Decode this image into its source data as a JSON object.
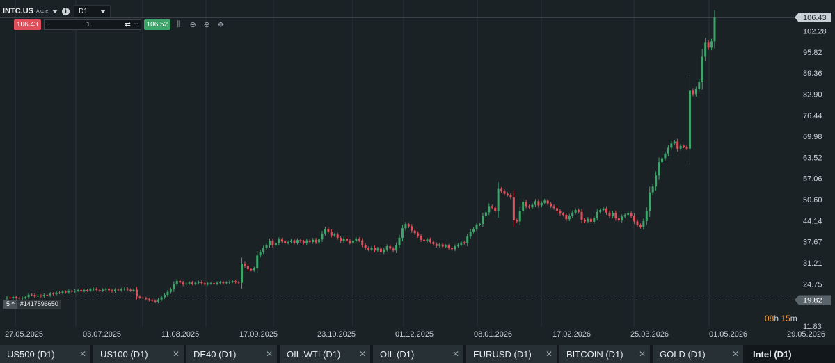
{
  "header": {
    "symbol": "INTC.US",
    "symbol_type": "Akcie",
    "timeframe": "D1",
    "info_icon": "info-icon"
  },
  "order": {
    "sell_price": "106.43",
    "buy_price": "106.52",
    "quantity": "1",
    "minus_label": "−",
    "plus_label": "+",
    "toggle_icon": "swap-icon",
    "tools": [
      "indicators-icon",
      "zoom-out-icon",
      "zoom-in-icon",
      "crosshair-move-icon"
    ]
  },
  "price_axis": {
    "labels": [
      "102.28",
      "95.82",
      "89.36",
      "82.90",
      "76.44",
      "69.98",
      "63.52",
      "57.06",
      "50.60",
      "44.14",
      "37.67",
      "31.21",
      "24.75",
      "11.83"
    ],
    "current_price": "106.43",
    "line_price": "19.82"
  },
  "time_axis": {
    "labels": [
      "27.05.2025",
      "03.07.2025",
      "11.08.2025",
      "17.09.2025",
      "23.10.2025",
      "01.12.2025",
      "08.01.2026",
      "17.02.2026",
      "25.03.2026",
      "01.05.2026",
      "29.05.2026"
    ]
  },
  "countdown": {
    "hours": "08",
    "hours_unit": "h",
    "minutes": "15",
    "minutes_unit": "m"
  },
  "order_line": {
    "count": "5",
    "chevron": "^",
    "id": "#1417596650"
  },
  "colors": {
    "up": "#3fa46a",
    "down": "#e0505a",
    "background": "#1b2226",
    "grid": "#2a3338"
  },
  "chart_data": {
    "type": "candlestick",
    "ylim": [
      11.83,
      106.43
    ],
    "close": [
      20.6,
      20.4,
      20.8,
      20.5,
      20.3,
      20.5,
      20.7,
      21.5,
      21.4,
      20.9,
      21.2,
      21.0,
      21.4,
      21.3,
      21.8,
      21.6,
      22.1,
      22.0,
      22.4,
      22.2,
      22.6,
      22.4,
      22.7,
      22.9,
      22.6,
      22.9,
      22.7,
      23.1,
      23.3,
      22.9,
      22.7,
      23.0,
      23.2,
      22.8,
      22.5,
      23.0,
      22.8,
      23.1,
      23.3,
      23.0,
      22.7,
      23.0,
      20.9,
      20.6,
      20.4,
      20.1,
      19.8,
      19.6,
      19.3,
      20.0,
      20.7,
      21.4,
      22.3,
      23.1,
      24.8,
      25.7,
      25.2,
      24.6,
      24.9,
      25.2,
      24.8,
      25.1,
      25.4,
      25.0,
      24.7,
      24.9,
      25.0,
      24.8,
      25.1,
      25.3,
      25.0,
      25.2,
      25.4,
      25.6,
      25.3,
      25.1,
      31.0,
      30.2,
      29.3,
      29.0,
      29.6,
      33.5,
      34.6,
      35.8,
      36.6,
      38.0,
      36.6,
      37.3,
      38.4,
      37.8,
      37.3,
      37.6,
      38.1,
      37.4,
      38.2,
      37.8,
      37.3,
      38.1,
      37.6,
      38.3,
      37.5,
      38.4,
      40.2,
      41.6,
      40.8,
      39.6,
      39.9,
      38.9,
      37.9,
      38.6,
      38.0,
      37.4,
      38.0,
      38.6,
      38.1,
      36.7,
      35.8,
      35.3,
      35.9,
      35.0,
      35.6,
      34.5,
      35.3,
      36.3,
      35.6,
      35.0,
      36.7,
      38.9,
      41.8,
      43.1,
      42.4,
      41.1,
      40.3,
      39.5,
      38.3,
      37.9,
      38.4,
      37.6,
      37.0,
      36.4,
      36.9,
      36.2,
      36.5,
      35.8,
      35.4,
      36.3,
      36.8,
      37.5,
      37.2,
      39.3,
      40.8,
      41.6,
      42.9,
      43.2,
      45.6,
      46.7,
      48.6,
      48.1,
      47.1,
      53.9,
      53.2,
      52.4,
      52.0,
      51.3,
      44.3,
      43.9,
      47.1,
      49.9,
      48.6,
      48.2,
      49.0,
      50.1,
      48.8,
      49.6,
      50.3,
      49.4,
      48.6,
      48.0,
      47.1,
      46.3,
      45.9,
      44.6,
      45.6,
      46.6,
      47.4,
      46.8,
      44.4,
      43.9,
      44.7,
      43.8,
      45.0,
      46.8,
      47.4,
      47.9,
      46.6,
      45.5,
      46.5,
      44.9,
      44.2,
      45.4,
      45.9,
      46.4,
      45.6,
      43.9,
      42.8,
      42.2,
      44.0,
      47.1,
      52.8,
      54.6,
      58.0,
      62.1,
      63.3,
      64.7,
      66.5,
      67.8,
      68.4,
      66.2,
      67.1,
      66.8,
      66.2,
      84.0,
      82.9,
      84.5,
      86.6,
      94.4,
      98.7,
      97.2,
      99.1,
      106.43
    ]
  }
}
